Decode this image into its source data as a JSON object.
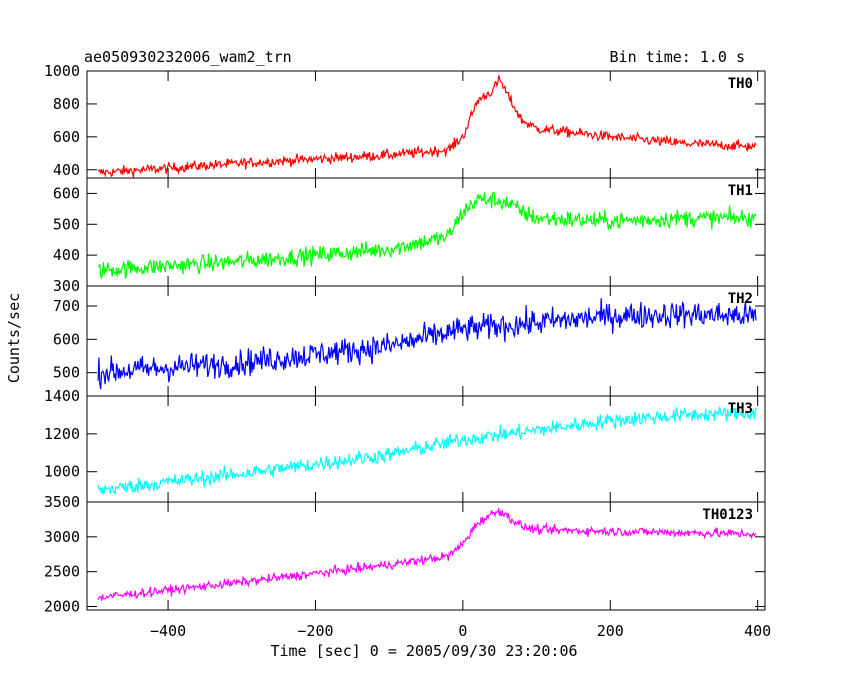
{
  "header": {
    "left_title": "ae050930232006_wam2_trn",
    "right_title": "Bin time: 1.0 s"
  },
  "axes": {
    "ylabel": "Counts/sec",
    "xlabel": "Time [sec] 0 = 2005/09/30 23:20:06"
  },
  "chart_data": {
    "type": "line",
    "bin_time_s": 1.0,
    "xlim": [
      -510,
      410
    ],
    "x_ticks": [
      -400,
      -200,
      0,
      200,
      400
    ],
    "x_tick_labels": [
      "−400",
      "−200",
      "0",
      "200",
      "400"
    ],
    "panels": [
      {
        "name": "TH0",
        "color": "#ff0000",
        "ylim": [
          350,
          1000
        ],
        "y_ticks": [
          400,
          600,
          800,
          1000
        ],
        "y_tick_labels": [
          "400",
          "600",
          "800",
          "1000"
        ],
        "noise": 22,
        "x": [
          -500,
          -300,
          -100,
          -20,
          0,
          20,
          40,
          50,
          60,
          80,
          100,
          200,
          300,
          400
        ],
        "y": [
          380,
          440,
          490,
          520,
          600,
          820,
          880,
          950,
          860,
          700,
          650,
          600,
          560,
          540
        ]
      },
      {
        "name": "TH1",
        "color": "#00ff00",
        "ylim": [
          300,
          650
        ],
        "y_ticks": [
          300,
          400,
          500,
          600
        ],
        "y_tick_labels": [
          "300",
          "400",
          "500",
          "600"
        ],
        "noise": 20,
        "x": [
          -500,
          -300,
          -100,
          -20,
          0,
          20,
          40,
          60,
          80,
          100,
          200,
          300,
          400
        ],
        "y": [
          350,
          380,
          420,
          460,
          540,
          580,
          580,
          570,
          540,
          520,
          510,
          520,
          520
        ]
      },
      {
        "name": "TH2",
        "color": "#0000ff",
        "ylim": [
          430,
          760
        ],
        "y_ticks": [
          500,
          600,
          700
        ],
        "y_tick_labels": [
          "500",
          "600",
          "700"
        ],
        "noise": 28,
        "x": [
          -500,
          -300,
          -100,
          0,
          100,
          200,
          300,
          400
        ],
        "y": [
          500,
          530,
          580,
          630,
          650,
          670,
          675,
          670
        ]
      },
      {
        "name": "TH3",
        "color": "#00ffff",
        "ylim": [
          840,
          1400
        ],
        "y_ticks": [
          1000,
          1200,
          1400
        ],
        "y_tick_labels": [
          "1000",
          "1200",
          "1400"
        ],
        "noise": 28,
        "x": [
          -500,
          -300,
          -100,
          0,
          100,
          200,
          300,
          400
        ],
        "y": [
          900,
          990,
          1090,
          1170,
          1220,
          1270,
          1300,
          1310
        ]
      },
      {
        "name": "TH0123",
        "color": "#ff00ff",
        "ylim": [
          1950,
          3500
        ],
        "y_ticks": [
          2000,
          2500,
          3000,
          3500
        ],
        "y_tick_labels": [
          "2000",
          "2500",
          "3000",
          "3500"
        ],
        "noise": 45,
        "x": [
          -500,
          -300,
          -100,
          -20,
          0,
          20,
          40,
          50,
          60,
          80,
          100,
          200,
          300,
          400
        ],
        "y": [
          2120,
          2350,
          2600,
          2720,
          2900,
          3200,
          3330,
          3380,
          3300,
          3150,
          3100,
          3080,
          3060,
          3040
        ]
      }
    ]
  }
}
